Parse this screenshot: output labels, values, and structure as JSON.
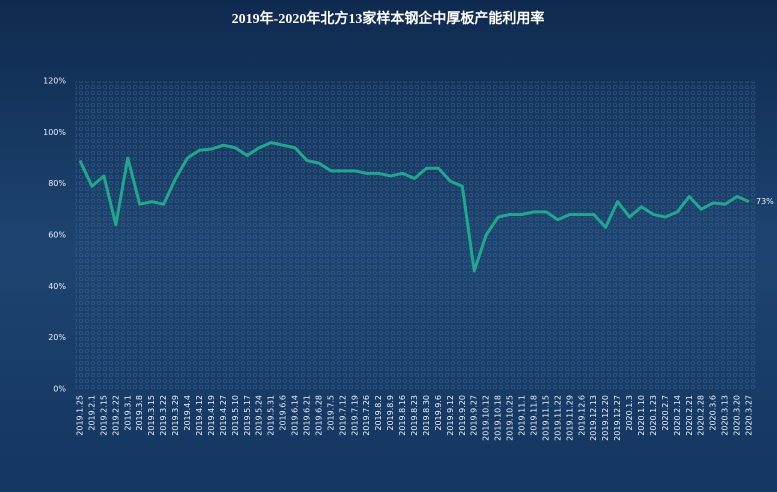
{
  "chart_data": {
    "type": "line",
    "title": "2019年-2020年北方13家样本钢企中厚板产能利用率",
    "categories": [
      "2019.1.25",
      "2019.2.1",
      "2019.2.15",
      "2019.2.22",
      "2019.3.1",
      "2019.3.8",
      "2019.3.15",
      "2019.3.22",
      "2019.3.29",
      "2019.4.4",
      "2019.4.12",
      "2019.4.19",
      "2019.4.27",
      "2019.5.10",
      "2019.5.17",
      "2019.5.24",
      "2019.5.31",
      "2019.6.6",
      "2019.6.14",
      "2019.6.21",
      "2019.6.28",
      "2019.7.5",
      "2019.7.12",
      "2019.7.19",
      "2019.7.26",
      "2019.8.2",
      "2019.8.9",
      "2019.8.16",
      "2019.8.23",
      "2019.8.30",
      "2019.9.6",
      "2019.9.12",
      "2019.9.20",
      "2019.9.27",
      "2019.10.12",
      "2019.10.18",
      "2019.10.25",
      "2019.11.1",
      "2019.11.8",
      "2019.11.15",
      "2019.11.22",
      "2019.11.29",
      "2019.12.6",
      "2019.12.13",
      "2019.12.20",
      "2019.12.27",
      "2020.1.3",
      "2020.1.10",
      "2020.1.23",
      "2020.2.7",
      "2020.2.14",
      "2020.2.21",
      "2020.2.28",
      "2020.3.6",
      "2020.3.13",
      "2020.3.20",
      "2020.3.27"
    ],
    "values": [
      89,
      79,
      83,
      64,
      90,
      72,
      73,
      72,
      82,
      90,
      93,
      93.5,
      95,
      94,
      91,
      94,
      96,
      95,
      94,
      89,
      88,
      85,
      85,
      85,
      84,
      84,
      83,
      84,
      82,
      86,
      86,
      81,
      79,
      46,
      60,
      67,
      68,
      68,
      69,
      69,
      66,
      68,
      68,
      68,
      63,
      73,
      67,
      71,
      68,
      67,
      69,
      75,
      70,
      72.5,
      72,
      75,
      73
    ],
    "value_labels": [
      null,
      null,
      null,
      null,
      null,
      null,
      null,
      null,
      null,
      null,
      null,
      null,
      null,
      null,
      null,
      null,
      null,
      null,
      null,
      null,
      null,
      null,
      null,
      null,
      null,
      null,
      null,
      null,
      null,
      null,
      null,
      null,
      null,
      null,
      null,
      null,
      null,
      null,
      null,
      null,
      null,
      null,
      null,
      null,
      null,
      null,
      null,
      null,
      null,
      null,
      null,
      null,
      null,
      null,
      null,
      null,
      "73%"
    ],
    "color": "#1fa88c",
    "ylim": [
      0,
      120
    ],
    "yticks": [
      {
        "value": 0,
        "label": "0%"
      },
      {
        "value": 20,
        "label": "20%"
      },
      {
        "value": 40,
        "label": "40%"
      },
      {
        "value": 60,
        "label": "60%"
      },
      {
        "value": 80,
        "label": "80%"
      },
      {
        "value": 100,
        "label": "100%"
      },
      {
        "value": 120,
        "label": "120%"
      }
    ],
    "grid": false
  }
}
